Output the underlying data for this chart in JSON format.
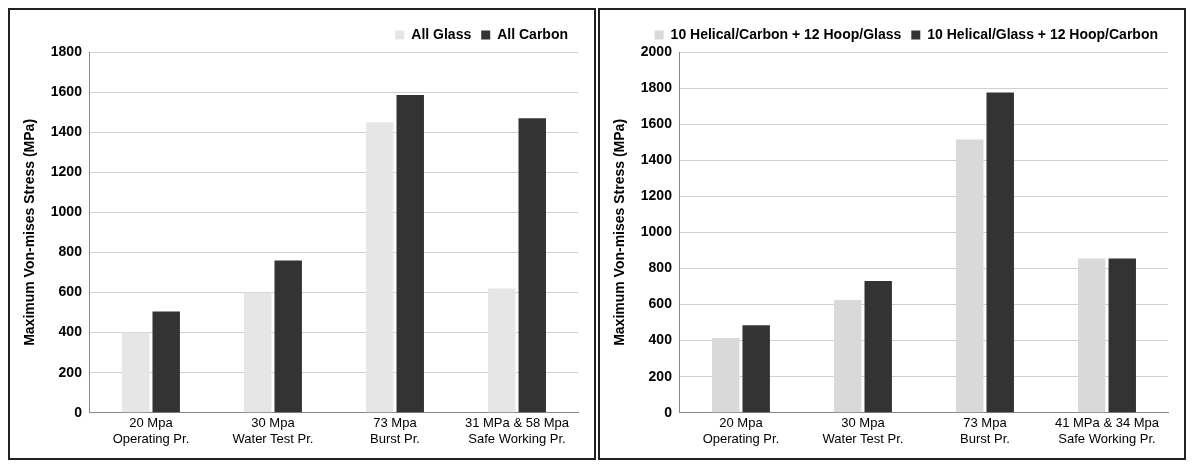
{
  "chart_data": [
    {
      "type": "bar",
      "ylabel": "Maximum Von-mises Stress (MPa)",
      "categories": [
        "20 Mpa\nOperating Pr.",
        "30 Mpa\nWater Test Pr.",
        "73 Mpa\nBurst Pr.",
        "31 MPa & 58 Mpa\nSafe Working Pr."
      ],
      "series": [
        {
          "name": "All Glass",
          "color": "#e6e6e6",
          "values": [
            400,
            600,
            1450,
            620
          ]
        },
        {
          "name": "All Carbon",
          "color": "#333333",
          "values": [
            505,
            760,
            1585,
            1470
          ]
        }
      ],
      "ylim": [
        0,
        1800
      ],
      "yticks": [
        0,
        200,
        400,
        600,
        800,
        1000,
        1200,
        1400,
        1600,
        1800
      ],
      "grid": "y",
      "legend": "top right"
    },
    {
      "type": "bar",
      "ylabel": "Maximum Von-mises Stress (MPa)",
      "categories": [
        "20 Mpa\nOperating Pr.",
        "30 Mpa\nWater Test Pr.",
        "73 Mpa\nBurst Pr.",
        "41 MPa & 34 Mpa\nSafe Working Pr."
      ],
      "series": [
        {
          "name": "10 Helical/Carbon + 12 Hoop/Glass",
          "color": "#d9d9d9",
          "values": [
            415,
            625,
            1515,
            855
          ]
        },
        {
          "name": "10 Helical/Glass + 12 Hoop/Carbon",
          "color": "#333333",
          "values": [
            485,
            730,
            1775,
            855
          ]
        }
      ],
      "ylim": [
        0,
        2000
      ],
      "yticks": [
        0,
        200,
        400,
        600,
        800,
        1000,
        1200,
        1400,
        1600,
        1800,
        2000
      ],
      "grid": "y",
      "legend": "top right"
    }
  ]
}
